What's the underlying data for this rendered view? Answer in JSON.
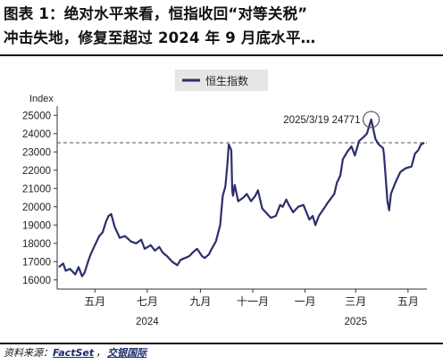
{
  "header": {
    "title_line1": "图表 1：绝对水平来看，恒指收回“对等关税”",
    "title_line2": "冲击失地，修复至超过 2024 年 9 月底水平…"
  },
  "footer": {
    "source_prefix": "资料来源：",
    "source_brand": "FactSet",
    "source_sep": "，",
    "source_org": "交银国际"
  },
  "colors": {
    "series": "#2b2f6b",
    "reference": "#555555"
  },
  "chart_data": {
    "type": "line",
    "ylabel": "Index",
    "ylim": [
      15500,
      25500
    ],
    "yticks": [
      16000,
      17000,
      18000,
      19000,
      20000,
      21000,
      22000,
      23000,
      24000,
      25000
    ],
    "x_tick_labels": [
      {
        "label": "五月",
        "date": "2024-05-01"
      },
      {
        "label": "七月",
        "date": "2024-07-01"
      },
      {
        "label": "九月",
        "date": "2024-09-01"
      },
      {
        "label": "十一月",
        "date": "2024-11-01"
      },
      {
        "label": "一月",
        "date": "2025-01-01"
      },
      {
        "label": "三月",
        "date": "2025-03-01"
      },
      {
        "label": "五月",
        "date": "2025-05-01"
      }
    ],
    "x_year_labels": [
      {
        "label": "2024",
        "date": "2024-07-01"
      },
      {
        "label": "2025",
        "date": "2025-03-01"
      }
    ],
    "xlim": [
      "2024-03-18",
      "2025-05-23"
    ],
    "legend": {
      "position": "top-center",
      "entries": [
        "恒生指数"
      ]
    },
    "reference_line": {
      "value": 23500,
      "style": "dashed"
    },
    "annotation": {
      "text": "2025/3/19 24771",
      "date": "2025-03-19",
      "value": 24771
    },
    "grid": false,
    "series": [
      {
        "name": "恒生指数",
        "x": [
          "2024-03-20",
          "2024-03-25",
          "2024-03-28",
          "2024-04-02",
          "2024-04-08",
          "2024-04-12",
          "2024-04-16",
          "2024-04-19",
          "2024-04-23",
          "2024-04-26",
          "2024-04-30",
          "2024-05-06",
          "2024-05-10",
          "2024-05-14",
          "2024-05-17",
          "2024-05-20",
          "2024-05-24",
          "2024-05-30",
          "2024-06-05",
          "2024-06-12",
          "2024-06-18",
          "2024-06-24",
          "2024-06-28",
          "2024-07-05",
          "2024-07-10",
          "2024-07-15",
          "2024-07-19",
          "2024-07-24",
          "2024-07-30",
          "2024-08-05",
          "2024-08-09",
          "2024-08-14",
          "2024-08-19",
          "2024-08-23",
          "2024-08-28",
          "2024-09-03",
          "2024-09-06",
          "2024-09-11",
          "2024-09-13",
          "2024-09-19",
          "2024-09-24",
          "2024-09-27",
          "2024-09-30",
          "2024-10-02",
          "2024-10-03",
          "2024-10-04",
          "2024-10-07",
          "2024-10-08",
          "2024-10-09",
          "2024-10-11",
          "2024-10-15",
          "2024-10-21",
          "2024-10-25",
          "2024-10-30",
          "2024-11-04",
          "2024-11-07",
          "2024-11-12",
          "2024-11-18",
          "2024-11-22",
          "2024-11-28",
          "2024-12-03",
          "2024-12-06",
          "2024-12-10",
          "2024-12-13",
          "2024-12-18",
          "2024-12-24",
          "2024-12-30",
          "2025-01-06",
          "2025-01-10",
          "2025-01-13",
          "2025-01-17",
          "2025-01-23",
          "2025-01-27",
          "2025-02-04",
          "2025-02-07",
          "2025-02-11",
          "2025-02-14",
          "2025-02-19",
          "2025-02-24",
          "2025-02-28",
          "2025-03-05",
          "2025-03-10",
          "2025-03-14",
          "2025-03-19",
          "2025-03-24",
          "2025-03-28",
          "2025-04-02",
          "2025-04-03",
          "2025-04-07",
          "2025-04-09",
          "2025-04-11",
          "2025-04-16",
          "2025-04-22",
          "2025-04-28",
          "2025-05-05",
          "2025-05-09",
          "2025-05-13",
          "2025-05-16",
          "2025-05-20"
        ],
        "values": [
          16700,
          16900,
          16500,
          16600,
          16300,
          16700,
          16200,
          16400,
          17000,
          17400,
          17800,
          18400,
          18600,
          19200,
          19500,
          19600,
          18900,
          18300,
          18400,
          18100,
          18000,
          18200,
          17700,
          17900,
          17600,
          17800,
          17500,
          17300,
          17000,
          16800,
          17100,
          17200,
          17300,
          17500,
          17700,
          17300,
          17200,
          17400,
          17600,
          18100,
          19000,
          20600,
          21100,
          22100,
          22700,
          23400,
          23100,
          20900,
          20600,
          21200,
          20300,
          20500,
          20700,
          20300,
          20600,
          20900,
          19900,
          19600,
          19400,
          19500,
          20100,
          20000,
          20400,
          20100,
          19700,
          20000,
          20100,
          19300,
          19500,
          19000,
          19500,
          19900,
          20200,
          20700,
          21300,
          21700,
          22600,
          23000,
          23300,
          22800,
          23600,
          23800,
          24000,
          24771,
          23700,
          23400,
          23200,
          22800,
          20300,
          19800,
          20700,
          21300,
          21900,
          22100,
          22200,
          22900,
          23100,
          23400,
          23500
        ]
      }
    ]
  }
}
